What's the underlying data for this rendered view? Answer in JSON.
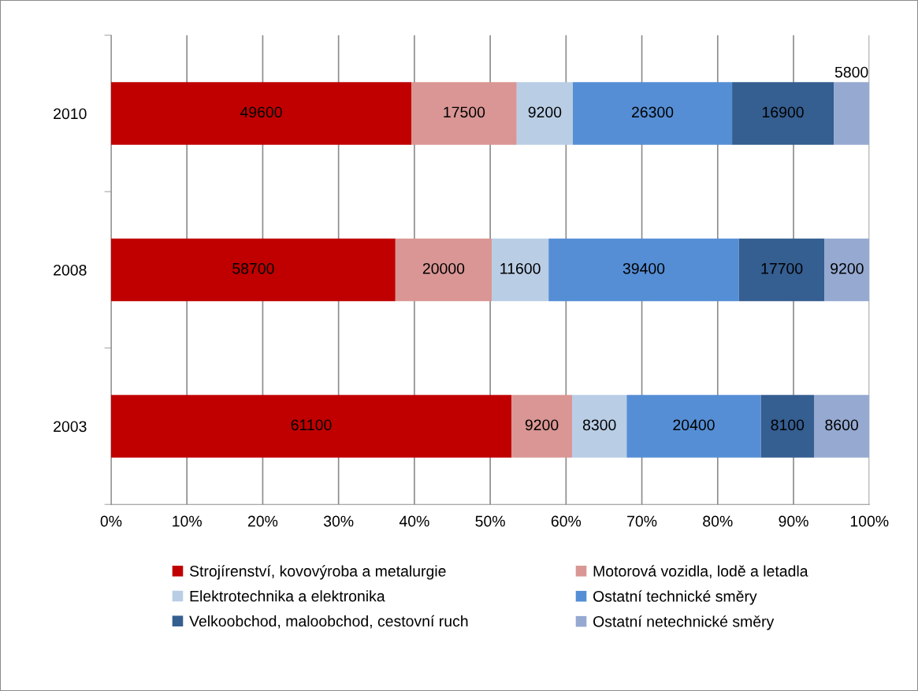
{
  "chart_data": {
    "type": "bar",
    "orientation": "horizontal",
    "stacked": true,
    "categories": [
      "2010",
      "2008",
      "2003"
    ],
    "series": [
      {
        "name": "Strojírenství, kovovýroba a metalurgie",
        "color": "#c00000",
        "values": [
          39.6,
          37.5,
          52.8
        ]
      },
      {
        "name": "Motorová vozidla, lodě a letadla",
        "color": "#d99694",
        "values": [
          13.9,
          12.7,
          8.0
        ]
      },
      {
        "name": "Elektrotechnika a elektronika",
        "color": "#b9cde5",
        "values": [
          7.4,
          7.5,
          7.2
        ]
      },
      {
        "name": "Ostatní technické směry",
        "color": "#558ed5",
        "values": [
          21.0,
          25.1,
          17.7
        ]
      },
      {
        "name": "Velkoobchod, maloobchod, cestovní ruch",
        "color": "#355e91",
        "values": [
          13.4,
          11.3,
          7.0
        ]
      },
      {
        "name": "Ostatní netechnické směry",
        "color": "#95a9d1",
        "values": [
          4.7,
          5.9,
          7.3
        ]
      }
    ],
    "annotations": [
      "49600",
      "17500",
      "9200",
      "26300",
      "16900",
      "5800",
      "58700",
      "20000",
      "11600",
      "39400",
      "17700",
      "9200",
      "61100",
      "9200",
      "8300",
      "20400",
      "8100",
      "8600"
    ],
    "xlim": [
      0,
      100
    ],
    "xticks": [
      {
        "value": 0,
        "label": "0%"
      },
      {
        "value": 10,
        "label": "10%"
      },
      {
        "value": 20,
        "label": "20%"
      },
      {
        "value": 30,
        "label": "30%"
      },
      {
        "value": 40,
        "label": "40%"
      },
      {
        "value": 50,
        "label": "50%"
      },
      {
        "value": 60,
        "label": "60%"
      },
      {
        "value": 70,
        "label": "70%"
      },
      {
        "value": 80,
        "label": "80%"
      },
      {
        "value": 90,
        "label": "90%"
      },
      {
        "value": 100,
        "label": "100%"
      }
    ],
    "grid": "x",
    "legend": "bottom"
  }
}
